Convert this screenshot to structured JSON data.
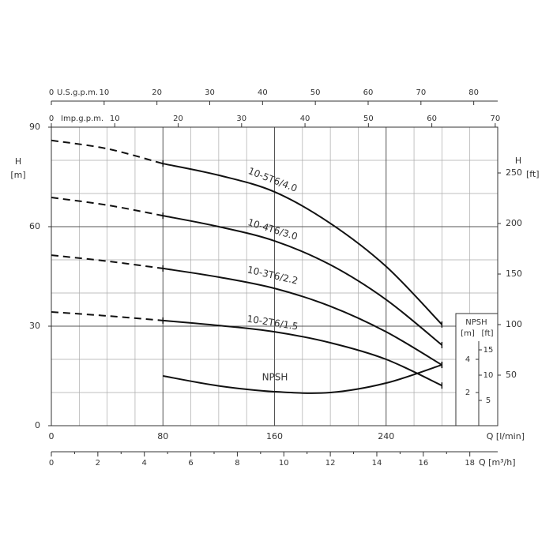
{
  "chart_data": {
    "type": "line",
    "y_label": "H",
    "y_unit": "[m]",
    "y2_label": "H",
    "y2_unit": "[ft]",
    "x_label": "Q [l/min]",
    "x2_label": "U.S.g.p.m.",
    "x3_label": "Imp.g.p.m.",
    "x4_label": "Q [m³/h]",
    "npsh_label": "NPSH",
    "npsh_unit_m": "[m]",
    "npsh_unit_ft": "[ft]",
    "x": [
      0,
      40,
      80,
      120,
      160,
      200,
      240,
      280
    ],
    "xlim": [
      0,
      320
    ],
    "xticks": [
      0,
      80,
      160,
      240
    ],
    "xminor": [
      20,
      40,
      60,
      100,
      120,
      140,
      180,
      200,
      220,
      260,
      280,
      300
    ],
    "ylim": [
      0,
      90
    ],
    "yticks": [
      0,
      30,
      60,
      90
    ],
    "yminor": [
      10,
      20,
      40,
      50,
      70,
      80
    ],
    "y2lim": [
      0,
      295.3
    ],
    "y2ticks": [
      50,
      100,
      150,
      200,
      250
    ],
    "x2lim": [
      0,
      84.54
    ],
    "x2ticks": [
      0,
      10,
      20,
      30,
      40,
      50,
      60,
      70,
      80
    ],
    "x3lim": [
      0,
      70.39
    ],
    "x3ticks": [
      0,
      10,
      20,
      30,
      40,
      50,
      60,
      70
    ],
    "x4lim": [
      0,
      19.2
    ],
    "x4ticks": [
      0,
      2,
      4,
      6,
      8,
      10,
      12,
      14,
      16,
      18
    ],
    "x4minor": [
      1,
      3,
      5,
      7,
      9,
      11,
      13,
      15,
      17
    ],
    "npsh_ylim": [
      0,
      18
    ],
    "npsh_yticks": [
      2,
      4
    ],
    "npsh_ftlim": [
      0,
      59.06
    ],
    "npsh_ftticks": [
      5,
      10,
      15
    ],
    "dash_until_x": 80,
    "grid": true,
    "series": [
      {
        "name": "10-5T6/4.0",
        "color": "#111111",
        "values": [
          86,
          83.5,
          79,
          75.5,
          70.5,
          61,
          48,
          30.5
        ]
      },
      {
        "name": "10-4T6/3.0",
        "color": "#111111",
        "values": [
          68.8,
          66.5,
          63.3,
          60,
          55.7,
          48.5,
          38,
          24.3
        ]
      },
      {
        "name": "10-3T6/2.2",
        "color": "#111111",
        "values": [
          51.4,
          49.6,
          47.4,
          44.8,
          41.4,
          36,
          28.3,
          18.3
        ]
      },
      {
        "name": "10-2T6/1.5",
        "color": "#111111",
        "values": [
          34.3,
          33.1,
          31.7,
          30.2,
          28.3,
          25,
          20,
          12.1
        ]
      },
      {
        "name": "NPSH",
        "color": "#111111",
        "axis": "npsh",
        "values": [
          null,
          null,
          3.0,
          2.4,
          2.05,
          2.0,
          2.57,
          3.67
        ]
      }
    ]
  }
}
